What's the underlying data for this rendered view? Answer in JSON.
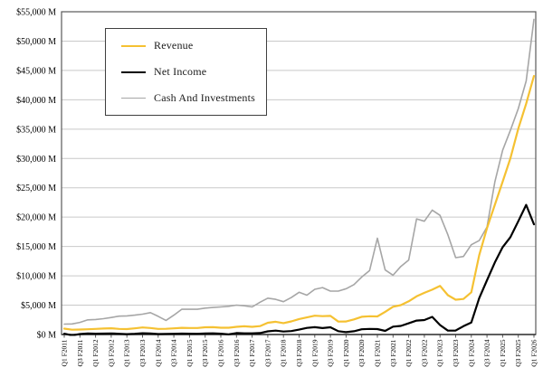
{
  "chart_data": {
    "type": "line",
    "title": "",
    "xlabel": "",
    "ylabel": "",
    "ylim": [
      0,
      55000
    ],
    "ytick_step": 5000,
    "grid": true,
    "legend_position": "top-left-inset",
    "y_tick_labels": [
      "$0 M",
      "$5,000 M",
      "$10,000 M",
      "$15,000 M",
      "$20,000 M",
      "$25,000 M",
      "$30,000 M",
      "$35,000 M",
      "$40,000 M",
      "$45,000 M",
      "$50,000 M",
      "$55,000 M"
    ],
    "x_tick_labels": [
      "Q1 F2011",
      "Q3 F2011",
      "Q1 F2012",
      "Q3 F2012",
      "Q1 F2013",
      "Q3 F2013",
      "Q1 F2014",
      "Q3 F2014",
      "Q1 F2015",
      "Q3 F2015",
      "Q1 F2016",
      "Q3 F2016",
      "Q1 F2017",
      "Q3 F2017",
      "Q1 F2018",
      "Q3 F2018",
      "Q1 F2019",
      "Q3 F2019",
      "Q1 F2020",
      "Q3 F2020",
      "Q1 F2021",
      "Q3 F2021",
      "Q1 F2022",
      "Q3 F2022",
      "Q1 F2023",
      "Q3 F2023",
      "Q1 F2024",
      "Q3 F2024",
      "Q1 F2025",
      "Q3 F2025",
      "Q1 F2026"
    ],
    "categories": [
      "Q1 F2011",
      "Q2 F2011",
      "Q3 F2011",
      "Q4 F2011",
      "Q1 F2012",
      "Q2 F2012",
      "Q3 F2012",
      "Q4 F2012",
      "Q1 F2013",
      "Q2 F2013",
      "Q3 F2013",
      "Q4 F2013",
      "Q1 F2014",
      "Q2 F2014",
      "Q3 F2014",
      "Q4 F2014",
      "Q1 F2015",
      "Q2 F2015",
      "Q3 F2015",
      "Q4 F2015",
      "Q1 F2016",
      "Q2 F2016",
      "Q3 F2016",
      "Q4 F2016",
      "Q1 F2017",
      "Q2 F2017",
      "Q3 F2017",
      "Q4 F2017",
      "Q1 F2018",
      "Q2 F2018",
      "Q3 F2018",
      "Q4 F2018",
      "Q1 F2019",
      "Q2 F2019",
      "Q3 F2019",
      "Q4 F2019",
      "Q1 F2020",
      "Q2 F2020",
      "Q3 F2020",
      "Q4 F2020",
      "Q1 F2021",
      "Q2 F2021",
      "Q3 F2021",
      "Q4 F2021",
      "Q1 F2022",
      "Q2 F2022",
      "Q3 F2022",
      "Q4 F2022",
      "Q1 F2023",
      "Q2 F2023",
      "Q3 F2023",
      "Q4 F2023",
      "Q1 F2024",
      "Q2 F2024",
      "Q3 F2024",
      "Q4 F2024",
      "Q1 F2025",
      "Q2 F2025",
      "Q3 F2025",
      "Q4 F2025",
      "Q1 F2026"
    ],
    "series": [
      {
        "name": "Revenue",
        "color": "#F5C132",
        "stroke_width": 2.2,
        "legend_swatch_thickness": 2.5,
        "values": [
          1002,
          811,
          844,
          886,
          962,
          1017,
          1066,
          953,
          925,
          1044,
          1204,
          1107,
          955,
          977,
          1054,
          1144,
          1103,
          1103,
          1225,
          1251,
          1151,
          1153,
          1305,
          1401,
          1305,
          1428,
          2004,
          2173,
          1937,
          2230,
          2636,
          2911,
          3207,
          3123,
          3181,
          2205,
          2220,
          2579,
          3014,
          3105,
          3080,
          3866,
          4726,
          5003,
          5661,
          6507,
          7103,
          7643,
          8288,
          6704,
          5931,
          6051,
          7192,
          13507,
          18120,
          22103,
          26044,
          30040,
          35082,
          39331,
          44062
        ]
      },
      {
        "name": "Net Income",
        "color": "#000000",
        "stroke_width": 2.2,
        "legend_swatch_thickness": 2.5,
        "values": [
          138,
          -141,
          84,
          172,
          135,
          152,
          178,
          116,
          60,
          119,
          209,
          174,
          78,
          96,
          119,
          147,
          137,
          128,
          173,
          193,
          134,
          26,
          246,
          207,
          196,
          253,
          542,
          655,
          507,
          583,
          838,
          1118,
          1244,
          1101,
          1230,
          567,
          394,
          552,
          899,
          950,
          917,
          622,
          1336,
          1457,
          1912,
          2374,
          2464,
          3003,
          1618,
          656,
          680,
          1414,
          2043,
          6188,
          9243,
          12285,
          14881,
          16599,
          19309,
          22091,
          18775
        ]
      },
      {
        "name": "Cash And Investments",
        "color": "#A6A6A6",
        "stroke_width": 1.6,
        "legend_swatch_thickness": 1.5,
        "values": [
          1765,
          1810,
          2060,
          2490,
          2560,
          2690,
          2900,
          3130,
          3180,
          3300,
          3460,
          3730,
          3100,
          2400,
          3300,
          4300,
          4300,
          4300,
          4500,
          4600,
          4700,
          4800,
          5000,
          4900,
          4700,
          5500,
          6200,
          6000,
          5600,
          6300,
          7200,
          6700,
          7700,
          8000,
          7400,
          7400,
          7800,
          8500,
          9800,
          10900,
          16400,
          11000,
          10100,
          11600,
          12700,
          19700,
          19300,
          21200,
          20300,
          17000,
          13100,
          13300,
          15300,
          16000,
          18300,
          26000,
          31400,
          34800,
          38500,
          43200,
          53700
        ]
      }
    ]
  }
}
